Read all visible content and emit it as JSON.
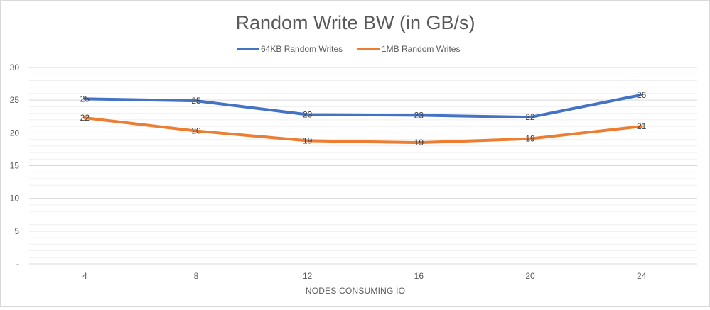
{
  "chart_data": {
    "type": "line",
    "title": "Random Write BW (in GB/s)",
    "xlabel": "NODES CONSUMING IO",
    "ylabel": "",
    "categories": [
      "4",
      "8",
      "12",
      "16",
      "20",
      "24"
    ],
    "y_tick_labels": [
      "-",
      "5",
      "10",
      "15",
      "20",
      "25",
      "30"
    ],
    "ylim": [
      0,
      30
    ],
    "grid": true,
    "legend": "top",
    "series": [
      {
        "name": "64KB Random Writes",
        "color": "#4472C4",
        "values": [
          25.2,
          24.9,
          22.8,
          22.7,
          22.4,
          25.8
        ],
        "labels": [
          "25",
          "25",
          "23",
          "23",
          "22",
          "26"
        ]
      },
      {
        "name": "1MB Random Writes",
        "color": "#ED7D31",
        "values": [
          22.3,
          20.3,
          18.8,
          18.5,
          19.1,
          21.0
        ],
        "labels": [
          "22",
          "20",
          "19",
          "19",
          "19",
          "21"
        ]
      }
    ]
  }
}
